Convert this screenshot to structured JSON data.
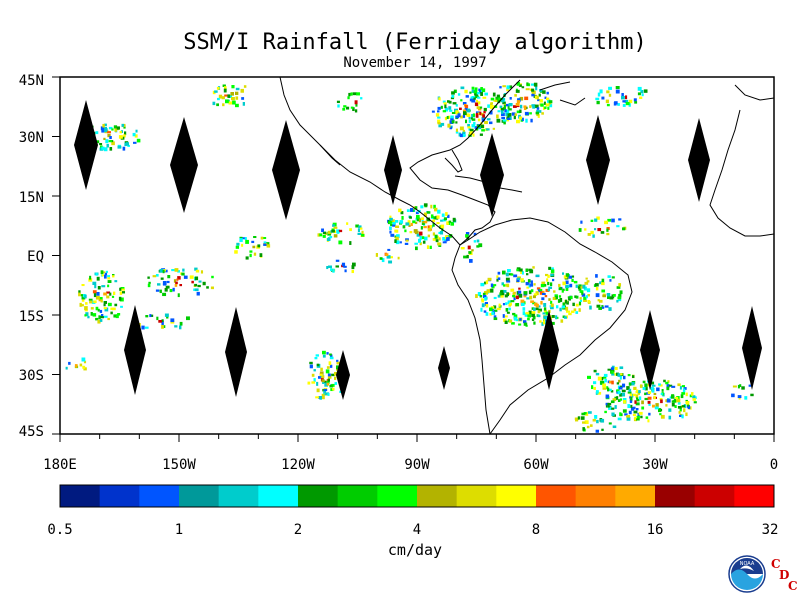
{
  "title": "SSM/I Rainfall (Ferriday algorithm)",
  "date": "November 14, 1997",
  "y_labels": [
    "45N",
    "30N",
    "15N",
    "EQ",
    "15S",
    "30S",
    "45S"
  ],
  "x_labels": [
    "180E",
    "150W",
    "120W",
    "90W",
    "60W",
    "30W",
    "0"
  ],
  "colorbar": {
    "colors": [
      "#001a80",
      "#0033cc",
      "#0055ff",
      "#00999a",
      "#00cccc",
      "#00ffff",
      "#009900",
      "#00cc00",
      "#00ff00",
      "#b3b300",
      "#dddd00",
      "#ffff00",
      "#ff5500",
      "#ff8000",
      "#ffaa00",
      "#990000",
      "#cc0000",
      "#ff0000"
    ],
    "tick_labels": [
      "0.5",
      "1",
      "2",
      "4",
      "8",
      "16",
      "32"
    ],
    "units": "cm/day"
  },
  "logo": {
    "noaa_text": "NOAA",
    "cdc_letters": [
      "C",
      "D",
      "C"
    ]
  }
}
